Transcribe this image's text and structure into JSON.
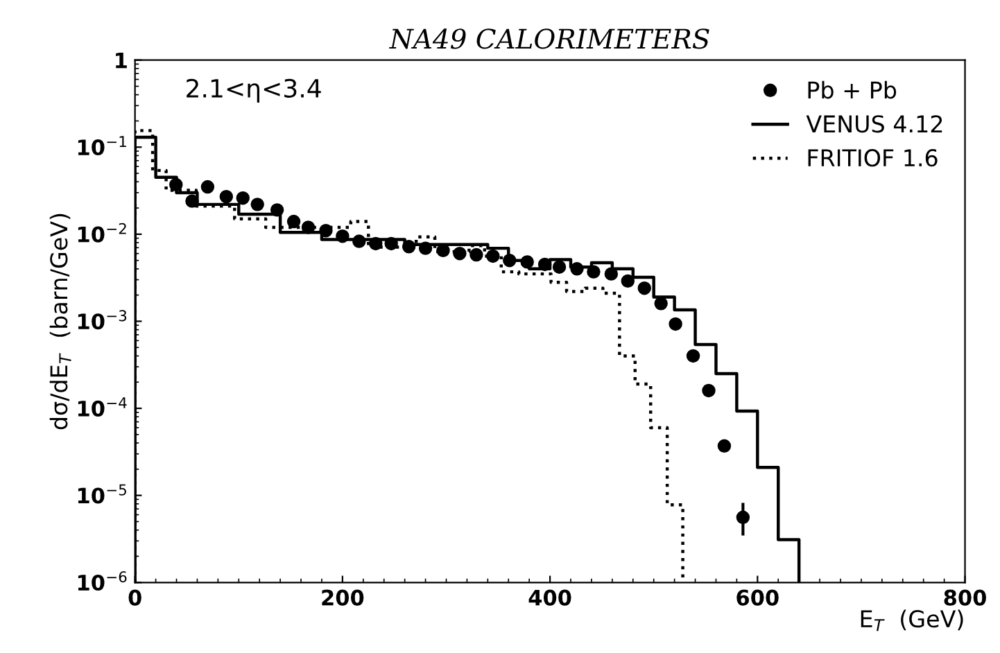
{
  "chart_data": {
    "type": "histogram",
    "title": "NA49 CALORIMETERS",
    "xlabel": "E$_{T}$  (GeV)",
    "ylabel": "dσ/dE$_{T}$  (barn/GeV)",
    "annotations": [
      "2.1<η<3.4"
    ],
    "log": "y",
    "legend": "top right",
    "grid": false,
    "xlim": [
      0,
      800
    ],
    "xticks": [
      0,
      200,
      400,
      600,
      800
    ],
    "ylim": [
      1e-06,
      1
    ],
    "yticks": [
      {
        "value": 1e-06,
        "label": "10$^{−6}$"
      },
      {
        "value": 1e-05,
        "label": "10$^{−5}$"
      },
      {
        "value": 0.0001,
        "label": "10$^{−4}$"
      },
      {
        "value": 0.001,
        "label": "10$^{−3}$"
      },
      {
        "value": 0.01,
        "label": "10$^{−2}$"
      },
      {
        "value": 0.1,
        "label": "10$^{−1}$"
      },
      1
    ],
    "series": [
      {
        "name": "Pb + Pb",
        "type": "scatter",
        "color": "#000000",
        "marker": "circle",
        "x": [
          39.5,
          55,
          70,
          88,
          104,
          118,
          137,
          153,
          167,
          184,
          200,
          216,
          232,
          247,
          264,
          280,
          297,
          313,
          329,
          345,
          361,
          378,
          395,
          409,
          426,
          442,
          459,
          475,
          491,
          507,
          521,
          538,
          553,
          568,
          586
        ],
        "values": [
          0.037,
          0.024,
          0.035,
          0.027,
          0.026,
          0.022,
          0.019,
          0.014,
          0.012,
          0.011,
          0.0095,
          0.0083,
          0.0078,
          0.0078,
          0.0072,
          0.0069,
          0.0065,
          0.006,
          0.0058,
          0.0056,
          0.005,
          0.0048,
          0.0045,
          0.0042,
          0.004,
          0.0037,
          0.0035,
          0.0029,
          0.0024,
          0.0016,
          0.00093,
          0.0004,
          0.00016,
          3.7e-05,
          5.6e-06
        ],
        "errors": [
          null,
          null,
          null,
          null,
          null,
          null,
          null,
          null,
          null,
          null,
          null,
          null,
          null,
          null,
          null,
          null,
          null,
          null,
          null,
          null,
          null,
          null,
          null,
          null,
          null,
          null,
          null,
          null,
          null,
          null,
          null,
          null,
          null,
          null,
          [
            3.6e-06,
            7.9e-06
          ]
        ]
      },
      {
        "name": "VENUS 4.12",
        "color": "#000000",
        "line_style": "solid",
        "bins": [
          0,
          20,
          40,
          60,
          80,
          100,
          120,
          140,
          160,
          180,
          200,
          220,
          240,
          260,
          280,
          300,
          320,
          340,
          360,
          380,
          400,
          420,
          440,
          460,
          480,
          500,
          520,
          540,
          560,
          580,
          600,
          620,
          640
        ],
        "values": [
          0.13,
          0.045,
          0.03,
          0.022,
          0.022,
          0.017,
          0.017,
          0.0105,
          0.0105,
          0.0087,
          0.0087,
          0.0087,
          0.0087,
          0.0076,
          0.0076,
          0.0076,
          0.0076,
          0.0069,
          0.005,
          0.004,
          0.0051,
          0.0042,
          0.0047,
          0.004,
          0.0032,
          0.0019,
          0.00135,
          0.00054,
          0.00025,
          9.3e-05,
          2.1e-05,
          3.1e-06
        ]
      },
      {
        "name": "FRITIOF 1.6",
        "color": "#000000",
        "line_style": "dotted",
        "bins": [
          0,
          17,
          30,
          59,
          96,
          126,
          208,
          225,
          271,
          289,
          322,
          337,
          353,
          370,
          401,
          416,
          434,
          451,
          467,
          482,
          497,
          513,
          528
        ],
        "values": [
          0.155,
          0.054,
          0.032,
          0.021,
          0.015,
          0.012,
          0.014,
          0.0071,
          0.0093,
          0.0063,
          0.0074,
          0.0056,
          0.0037,
          0.0035,
          0.0028,
          0.0022,
          0.0024,
          0.0021,
          0.0004,
          0.00019,
          6e-05,
          7.8e-06
        ]
      }
    ]
  }
}
